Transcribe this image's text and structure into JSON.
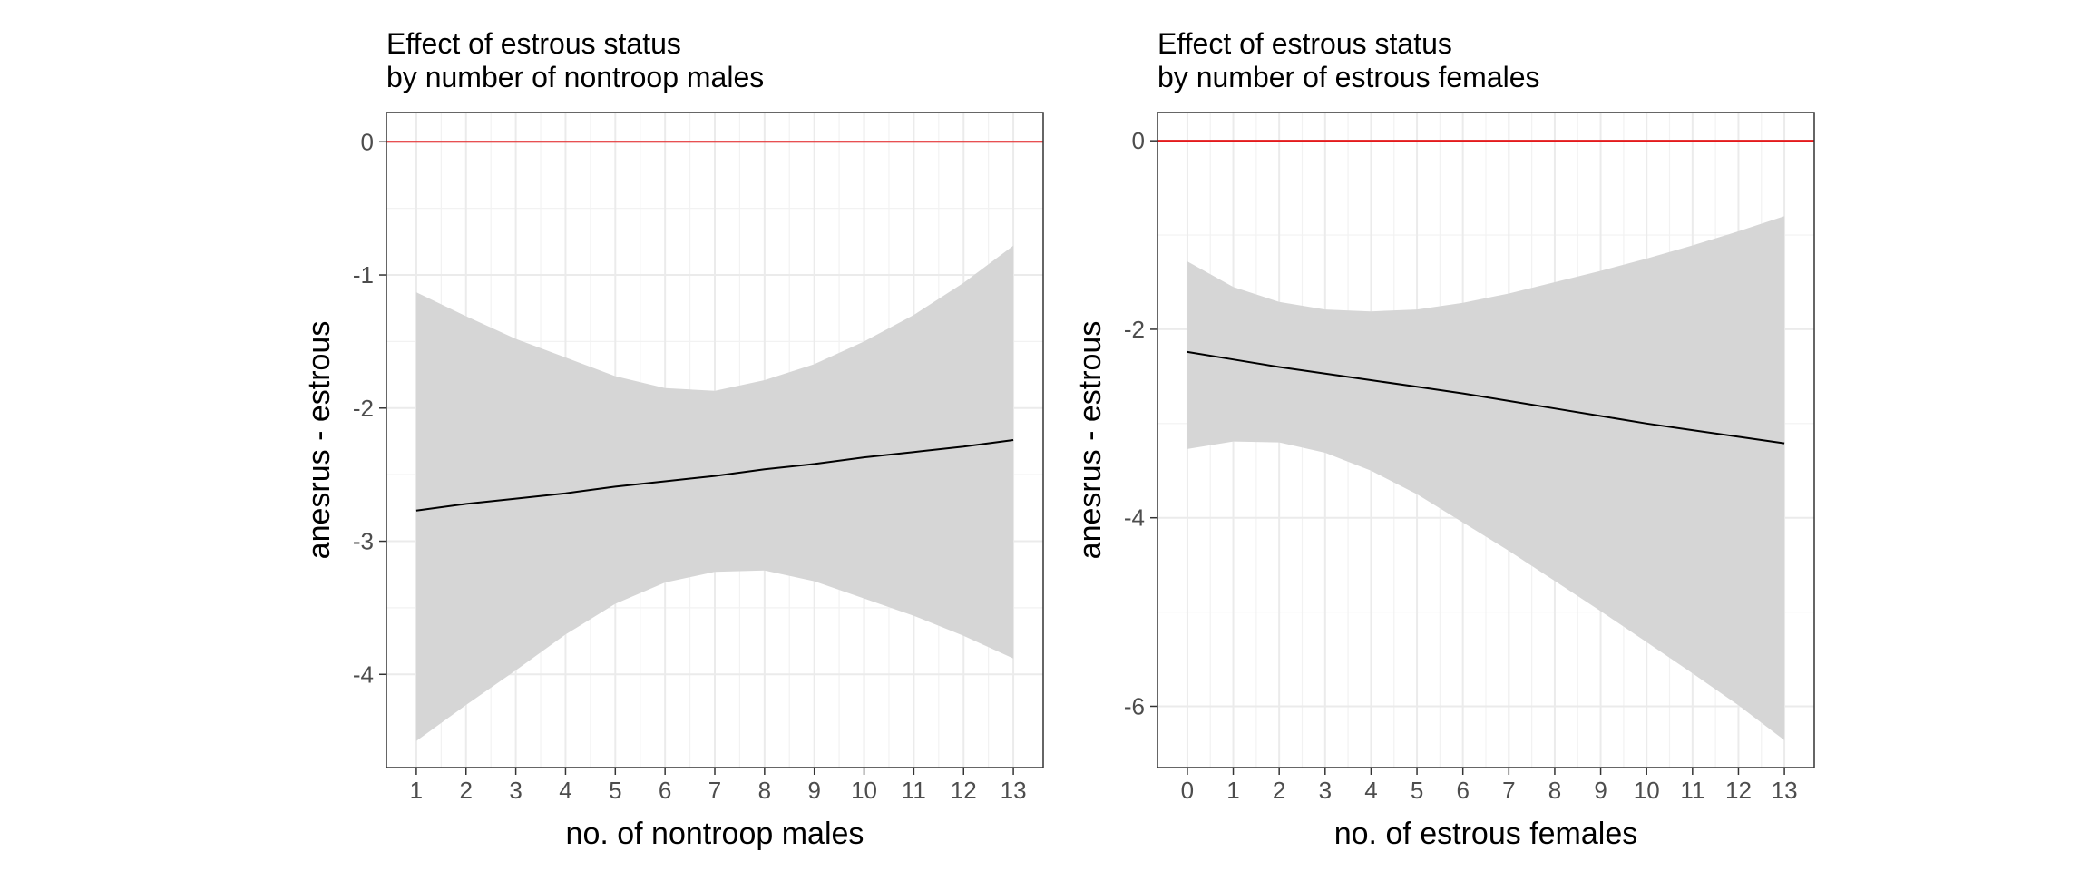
{
  "chart_data": [
    {
      "type": "line",
      "title_lines": [
        "Effect of estrous status",
        "by number of nontroop males"
      ],
      "xlabel": "no. of nontroop males",
      "ylabel": "anesrus - estrous",
      "xlim": [
        0.4,
        13.6
      ],
      "ylim": [
        -4.7,
        0.22
      ],
      "xticks": [
        1,
        2,
        3,
        4,
        5,
        6,
        7,
        8,
        9,
        10,
        11,
        12,
        13
      ],
      "yticks": [
        0,
        -1,
        -2,
        -3,
        -4
      ],
      "ytick_labels": [
        "0",
        "-1",
        "-2",
        "-3",
        "-4"
      ],
      "reference_line": {
        "y": 0,
        "color": "#e41a1c"
      },
      "series": [
        {
          "x": [
            1,
            2,
            3,
            4,
            5,
            6,
            7,
            8,
            9,
            10,
            11,
            12,
            13
          ],
          "estimate": [
            -2.77,
            -2.72,
            -2.68,
            -2.64,
            -2.59,
            -2.55,
            -2.51,
            -2.46,
            -2.42,
            -2.37,
            -2.33,
            -2.29,
            -2.24
          ],
          "lower": [
            -4.5,
            -4.23,
            -3.97,
            -3.7,
            -3.47,
            -3.31,
            -3.23,
            -3.22,
            -3.3,
            -3.43,
            -3.56,
            -3.71,
            -3.88
          ],
          "upper": [
            -1.13,
            -1.31,
            -1.48,
            -1.62,
            -1.76,
            -1.85,
            -1.87,
            -1.79,
            -1.67,
            -1.5,
            -1.3,
            -1.06,
            -0.78
          ]
        }
      ],
      "band_color": "#d6d6d6",
      "line_color": "#000000",
      "grid": true
    },
    {
      "type": "line",
      "title_lines": [
        "Effect of estrous status",
        "by number of estrous females"
      ],
      "xlabel": "no. of estrous females",
      "ylabel": "anesrus - estrous",
      "xlim": [
        -0.65,
        13.65
      ],
      "ylim": [
        -6.65,
        0.3
      ],
      "xticks": [
        0,
        1,
        2,
        3,
        4,
        5,
        6,
        7,
        8,
        9,
        10,
        11,
        12,
        13
      ],
      "yticks": [
        0,
        -2,
        -4,
        -6
      ],
      "ytick_labels": [
        "0",
        "-2",
        "-4",
        "-6"
      ],
      "reference_line": {
        "y": 0,
        "color": "#e41a1c"
      },
      "series": [
        {
          "x": [
            0,
            1,
            2,
            3,
            4,
            5,
            6,
            7,
            8,
            9,
            10,
            11,
            12,
            13
          ],
          "estimate": [
            -2.24,
            -2.32,
            -2.4,
            -2.47,
            -2.54,
            -2.61,
            -2.68,
            -2.76,
            -2.84,
            -2.92,
            -3.0,
            -3.07,
            -3.14,
            -3.21
          ],
          "lower": [
            -3.27,
            -3.19,
            -3.2,
            -3.31,
            -3.5,
            -3.75,
            -4.05,
            -4.35,
            -4.67,
            -4.99,
            -5.32,
            -5.65,
            -5.99,
            -6.36
          ],
          "upper": [
            -1.28,
            -1.55,
            -1.71,
            -1.79,
            -1.81,
            -1.79,
            -1.72,
            -1.62,
            -1.5,
            -1.38,
            -1.25,
            -1.11,
            -0.96,
            -0.8
          ]
        }
      ],
      "band_color": "#d6d6d6",
      "line_color": "#000000",
      "grid": true
    }
  ]
}
